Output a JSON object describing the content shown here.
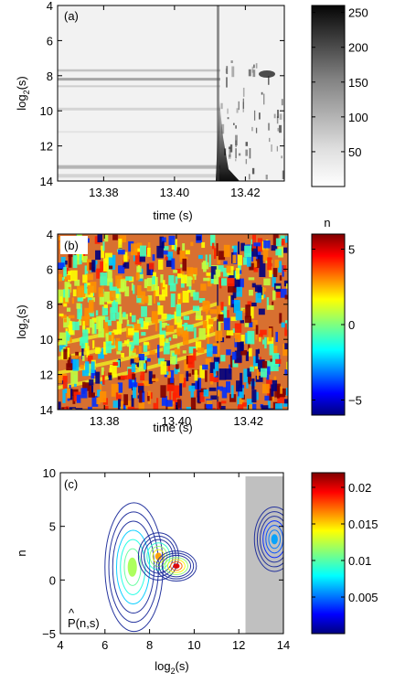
{
  "chart_data": [
    {
      "id": "a",
      "type": "heatmap",
      "panel_label": "(a)",
      "xlabel": "time (s)",
      "ylabel_base": "log",
      "ylabel_sub": "2",
      "ylabel_tail": "(s)",
      "xlim": [
        13.367,
        13.431
      ],
      "ylim": [
        14,
        4
      ],
      "xticks": [
        "13.38",
        "13.40",
        "13.42"
      ],
      "xtick_values": [
        13.38,
        13.4,
        13.42
      ],
      "yticks": [
        "4",
        "6",
        "8",
        "10",
        "12",
        "14"
      ],
      "ytick_values": [
        4,
        6,
        8,
        10,
        12,
        14
      ],
      "colorbar": {
        "ticks": [
          "250",
          "200",
          "150",
          "100",
          "50"
        ],
        "tick_values": [
          250,
          200,
          150,
          100,
          50
        ],
        "range": [
          0,
          260
        ],
        "colormap": "gray_reversed"
      }
    },
    {
      "id": "b",
      "type": "heatmap",
      "panel_label": "(b)",
      "xlabel": "time (s)",
      "ylabel_base": "log",
      "ylabel_sub": "2",
      "ylabel_tail": "(s)",
      "xlim": [
        13.367,
        13.431
      ],
      "ylim": [
        14,
        4
      ],
      "xticks": [
        "13.38",
        "13.40",
        "13.42"
      ],
      "xtick_values": [
        13.38,
        13.4,
        13.42
      ],
      "yticks": [
        "4",
        "6",
        "8",
        "10",
        "12",
        "14"
      ],
      "ytick_values": [
        4,
        6,
        8,
        10,
        12,
        14
      ],
      "colorbar": {
        "title": "n",
        "ticks": [
          "5",
          "0",
          "−5"
        ],
        "tick_values": [
          5,
          0,
          -5
        ],
        "range": [
          -6,
          6
        ],
        "colormap": "jet"
      }
    },
    {
      "id": "c",
      "type": "contour",
      "panel_label": "(c)",
      "annotation_base": "P",
      "annotation_tail": "(n,s)",
      "xlabel_base": "log",
      "xlabel_sub": "2",
      "xlabel_tail": "(s)",
      "ylabel": "n",
      "xlim": [
        4,
        14
      ],
      "ylim": [
        -5,
        10
      ],
      "xticks": [
        "4",
        "6",
        "8",
        "10",
        "12",
        "14"
      ],
      "xtick_values": [
        4,
        6,
        8,
        10,
        12,
        14
      ],
      "yticks": [
        "10",
        "5",
        "0",
        "−5"
      ],
      "ytick_values": [
        10,
        5,
        0,
        -5
      ],
      "shaded_region_x": [
        12.3,
        14
      ],
      "peaks": [
        {
          "x": 7.3,
          "y": 1.2,
          "level": 0.012
        },
        {
          "x": 8.4,
          "y": 2.2,
          "level": 0.016
        },
        {
          "x": 9.2,
          "y": 1.3,
          "level": 0.02
        },
        {
          "x": 13.6,
          "y": 3.8,
          "level": 0.006
        }
      ],
      "colorbar": {
        "ticks": [
          "0.02",
          "0.015",
          "0.01",
          "0.005"
        ],
        "tick_values": [
          0.02,
          0.015,
          0.01,
          0.005
        ],
        "range": [
          0,
          0.022
        ],
        "colormap": "jet"
      }
    }
  ],
  "colors": {
    "shade": "#c0c0c0",
    "contour": "#1a2a9a"
  }
}
